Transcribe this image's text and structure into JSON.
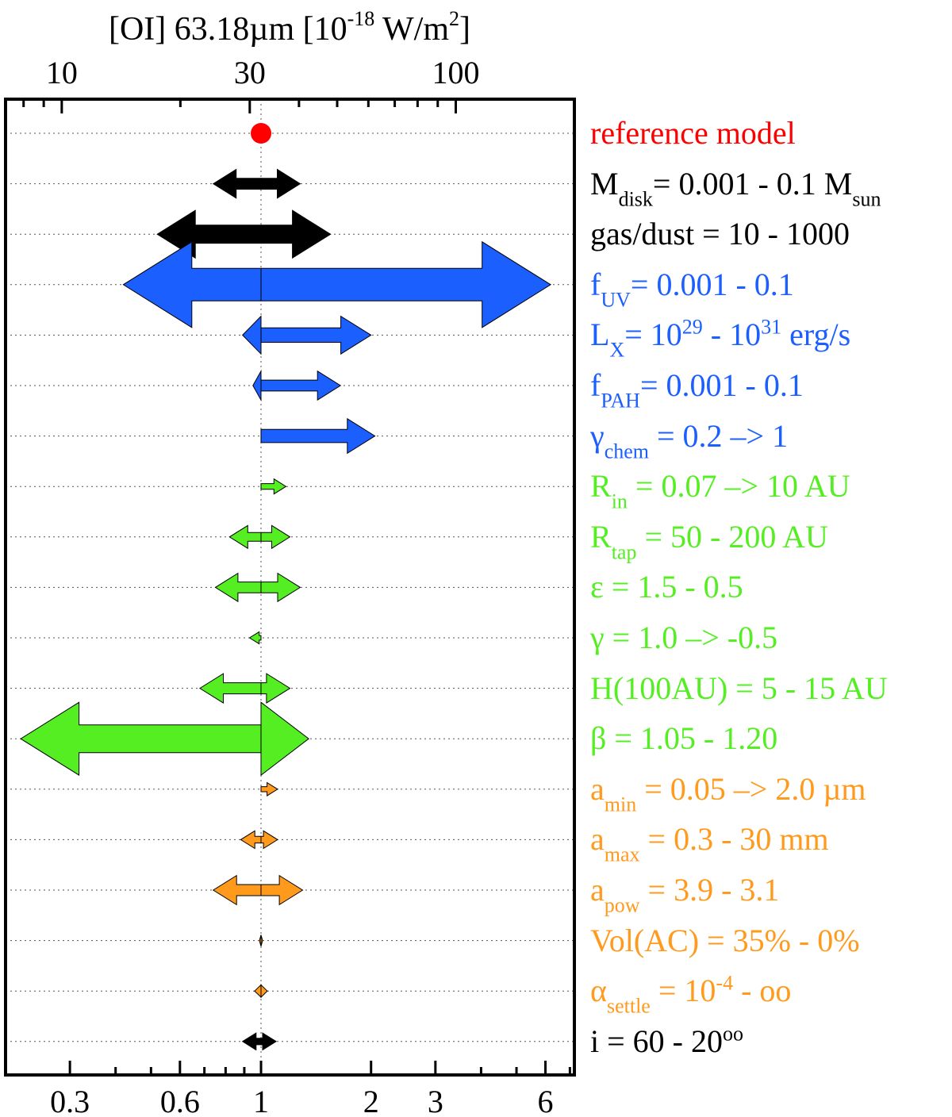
{
  "chart_data": {
    "type": "arrow-range",
    "top_axis": {
      "title_main": "[OI] 63.18µm [10",
      "title_exp": "-18",
      "title_unit": " W/m",
      "title_unit_exp": "2",
      "title_close": "]",
      "scale": "log",
      "range": [
        7.2,
        200
      ],
      "ticks": [
        10,
        30,
        100
      ],
      "tick_labels": [
        "10",
        "30",
        "100"
      ]
    },
    "bottom_axis": {
      "scale": "log",
      "range": [
        0.2,
        7.2
      ],
      "ticks": [
        0.3,
        0.6,
        1,
        2,
        3,
        6
      ],
      "tick_labels": [
        "0.3",
        "0.6",
        "1",
        "2",
        "3",
        "6"
      ],
      "minor_ticks": [
        0.4,
        0.5,
        0.7,
        0.8,
        0.9,
        4,
        5,
        7
      ]
    },
    "reference_value": 1,
    "reference_color": "#ff0000",
    "rows": [
      {
        "label": "reference model",
        "color": "#ff0000",
        "ref": true
      },
      {
        "label": "M",
        "sub": "disk",
        "rest": "= 0.001 - 0.1 M",
        "sub2": "sun",
        "color": "#000000",
        "low": 0.74,
        "high": 1.28
      },
      {
        "label": "gas/dust = 10 - 1000",
        "color": "#000000",
        "low": 0.52,
        "high": 1.55
      },
      {
        "label": "f",
        "sub": "UV",
        "rest": "= 0.001 - 0.1",
        "color": "#1c5fff",
        "low": 0.42,
        "high": 6.2
      },
      {
        "label": "L",
        "sub": "X",
        "rest": "= 10",
        "sup": "29",
        "rest2": " - 10",
        "sup2": "31",
        "rest3": " erg/s",
        "color": "#1c5fff",
        "low": 0.89,
        "high": 2.0
      },
      {
        "label": "f",
        "sub": "PAH",
        "rest": "= 0.001 - 0.1",
        "color": "#1c5fff",
        "low": 0.95,
        "high": 1.65
      },
      {
        "label": "γ",
        "sub": "chem",
        "rest": " = 0.2 –> 1",
        "color": "#1c5fff",
        "low": 1.0,
        "high": 2.05
      },
      {
        "label": "R",
        "sub": "in",
        "rest": " = 0.07 –> 10 AU",
        "color": "#55ee22",
        "low": 1.0,
        "high": 1.17
      },
      {
        "label": "R",
        "sub": "tap",
        "rest": " = 50 - 200 AU",
        "color": "#55ee22",
        "low": 0.82,
        "high": 1.2
      },
      {
        "label": "ε = 1.5 - 0.5",
        "color": "#55ee22",
        "low": 0.75,
        "high": 1.28
      },
      {
        "label": "γ = 1.0 –> -0.5",
        "color": "#55ee22",
        "low": 0.93,
        "high": 1.0
      },
      {
        "label": "H(100AU) = 5 - 15 AU",
        "color": "#55ee22",
        "low": 0.68,
        "high": 1.2
      },
      {
        "label": "β = 1.05 - 1.20",
        "color": "#55ee22",
        "low": 0.22,
        "high": 1.35
      },
      {
        "label": "a",
        "sub": "min",
        "rest": " = 0.05 –> 2.0 µm",
        "color": "#ff9a1c",
        "low": 1.0,
        "high": 1.11
      },
      {
        "label": "a",
        "sub": "max",
        "rest": " = 0.3 - 30 mm",
        "color": "#ff9a1c",
        "low": 0.88,
        "high": 1.11
      },
      {
        "label": "a",
        "sub": "pow",
        "rest": " = 3.9 - 3.1",
        "color": "#ff9a1c",
        "low": 0.74,
        "high": 1.3
      },
      {
        "label": "Vol(AC) = 35% - 0%",
        "color": "#ff9a1c",
        "low": 0.99,
        "high": 1.01
      },
      {
        "label": "α",
        "sub": "settle",
        "rest": " = 10",
        "sup": "-4",
        "rest2": " - oo",
        "color": "#ff9a1c",
        "low": 0.96,
        "high": 1.04
      },
      {
        "label": "i = 60",
        "sup": "o",
        "rest": " - 20",
        "sup2": "o",
        "color": "#000000",
        "low": 0.89,
        "high": 1.1
      }
    ]
  }
}
